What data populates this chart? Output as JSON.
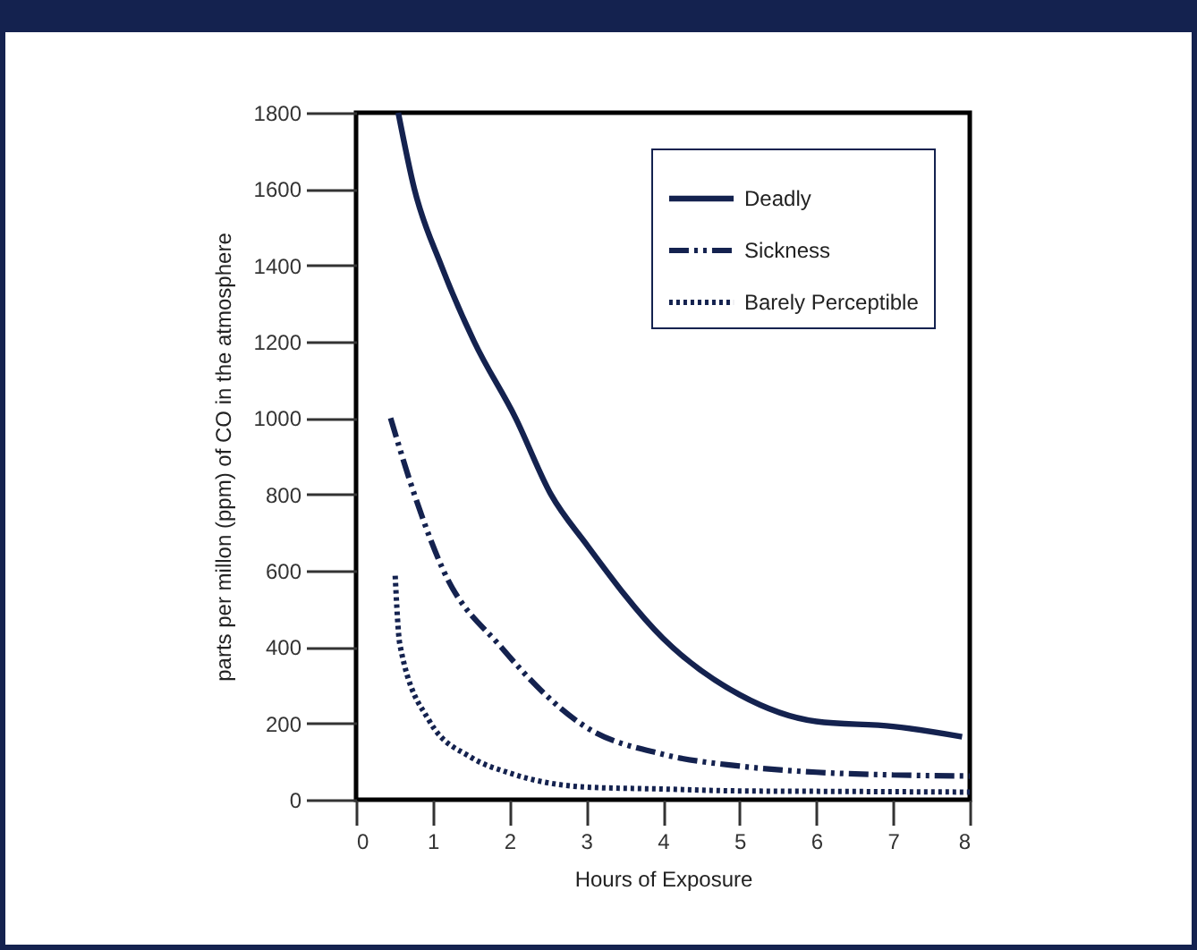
{
  "chart_data": {
    "type": "line",
    "xlabel": "Hours of Exposure",
    "ylabel": "parts per millon (ppm) of CO in the atmosphere",
    "xlim": [
      0,
      8
    ],
    "xticks": [
      0,
      1,
      2,
      3,
      4,
      5,
      6,
      7,
      8
    ],
    "ylim": [
      0,
      1800
    ],
    "yticks": [
      0,
      200,
      400,
      600,
      800,
      1000,
      1200,
      1400,
      1600,
      1800
    ],
    "grid": false,
    "legend": "top right",
    "marker": "none",
    "series": [
      {
        "name": "Deadly",
        "color": "#14224f",
        "line_style": "solid",
        "x": [
          0.55,
          0.76,
          1.11,
          1.54,
          2.08,
          2.54,
          3,
          4,
          5,
          6,
          7,
          7.9
        ],
        "values": [
          1800,
          1600,
          1400,
          1200,
          1000,
          800,
          670,
          423,
          275,
          205,
          192,
          165
        ]
      },
      {
        "name": "Sickness",
        "color": "#14224f",
        "line_style": "dashed",
        "x": [
          0.45,
          0.76,
          1.14,
          1.89,
          3,
          4,
          5,
          6,
          7,
          8
        ],
        "values": [
          1000,
          800,
          600,
          400,
          190,
          119,
          88,
          72,
          65,
          62
        ]
      },
      {
        "name": "Barely Perceptible",
        "color": "#14224f",
        "line_style": "dotted",
        "x": [
          0.51,
          0.57,
          0.96,
          1.5,
          2,
          3,
          4,
          5,
          6,
          7,
          8
        ],
        "values": [
          587,
          408,
          205,
          111,
          70,
          33,
          28,
          23,
          22,
          21,
          20
        ]
      }
    ]
  }
}
